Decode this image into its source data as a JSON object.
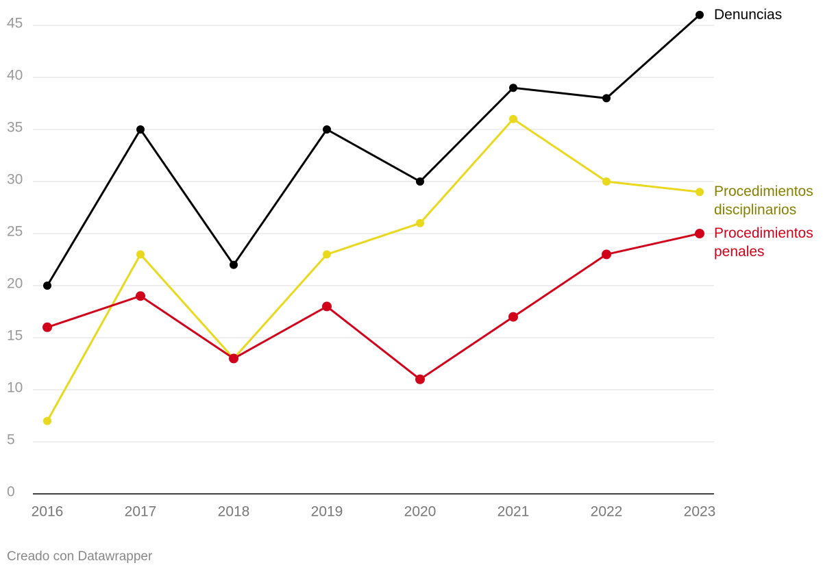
{
  "chart_data": {
    "type": "line",
    "categories": [
      "2016",
      "2017",
      "2018",
      "2019",
      "2020",
      "2021",
      "2022",
      "2023"
    ],
    "series": [
      {
        "name": "Denuncias",
        "color": "#000000",
        "label_color": "#000000",
        "values": [
          20,
          35,
          22,
          35,
          30,
          39,
          38,
          46
        ]
      },
      {
        "name": "Procedimientos disciplinarios",
        "color": "#e8d81e",
        "label_color": "#858000",
        "values": [
          7,
          23,
          13,
          23,
          26,
          36,
          30,
          29
        ]
      },
      {
        "name": "Procedimientos penales",
        "color": "#d0021b",
        "label_color": "#d0021b",
        "values": [
          16,
          19,
          13,
          18,
          11,
          17,
          23,
          25
        ]
      }
    ],
    "ylim": [
      0,
      46
    ],
    "yticks": [
      0,
      5,
      10,
      15,
      20,
      25,
      30,
      35,
      40,
      45
    ],
    "grid": true,
    "footer": "Creado con Datawrapper"
  }
}
